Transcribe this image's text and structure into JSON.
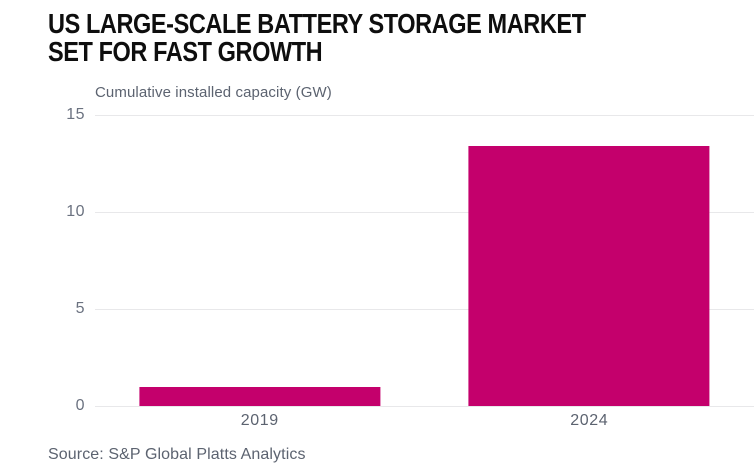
{
  "header": {
    "title_line1": "US LARGE-SCALE BATTERY STORAGE MARKET",
    "title_line2": "SET FOR FAST GROWTH"
  },
  "source": {
    "label": "Source: S&P Global Platts Analytics"
  },
  "colors": {
    "bar": "#c4006c",
    "grid": "#e8e8ea",
    "title_text": "#0e0e0e",
    "muted_text": "#5c6370",
    "tick_text": "#6b7280",
    "background": "#ffffff"
  },
  "chart_data": {
    "type": "bar",
    "title": "US LARGE-SCALE BATTERY STORAGE MARKET SET FOR FAST GROWTH",
    "subtitle": "Cumulative installed capacity (GW)",
    "categories": [
      "2019",
      "2024"
    ],
    "values": [
      1.0,
      13.4
    ],
    "xlabel": "",
    "ylabel": "Cumulative installed capacity (GW)",
    "ylim": [
      0,
      15
    ],
    "yticks": [
      0,
      5,
      10,
      15
    ],
    "grid": true,
    "legend": false,
    "bar_color": "#c4006c",
    "source": "Source: S&P Global Platts Analytics"
  }
}
